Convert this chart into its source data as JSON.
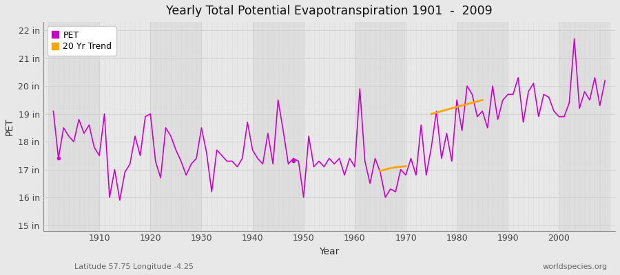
{
  "title": "Yearly Total Potential Evapotranspiration 1901  -  2009",
  "xlabel": "Year",
  "ylabel": "PET",
  "subtitle_left": "Latitude 57.75 Longitude -4.25",
  "subtitle_right": "worldspecies.org",
  "years": [
    1901,
    1902,
    1903,
    1904,
    1905,
    1906,
    1907,
    1908,
    1909,
    1910,
    1911,
    1912,
    1913,
    1914,
    1915,
    1916,
    1917,
    1918,
    1919,
    1920,
    1921,
    1922,
    1923,
    1924,
    1925,
    1926,
    1927,
    1928,
    1929,
    1930,
    1931,
    1932,
    1933,
    1934,
    1935,
    1936,
    1937,
    1938,
    1939,
    1940,
    1941,
    1942,
    1943,
    1944,
    1945,
    1946,
    1947,
    1948,
    1949,
    1950,
    1951,
    1952,
    1953,
    1954,
    1955,
    1956,
    1957,
    1958,
    1959,
    1960,
    1961,
    1962,
    1963,
    1964,
    1965,
    1966,
    1967,
    1968,
    1969,
    1970,
    1971,
    1972,
    1973,
    1974,
    1975,
    1976,
    1977,
    1978,
    1979,
    1980,
    1981,
    1982,
    1983,
    1984,
    1985,
    1986,
    1987,
    1988,
    1989,
    1990,
    1991,
    1992,
    1993,
    1994,
    1995,
    1996,
    1997,
    1998,
    1999,
    2000,
    2001,
    2002,
    2003,
    2004,
    2005,
    2006,
    2007,
    2008,
    2009
  ],
  "pet": [
    19.1,
    17.4,
    18.5,
    18.2,
    18.0,
    18.8,
    18.3,
    18.6,
    17.8,
    17.5,
    19.0,
    16.0,
    17.0,
    15.9,
    16.9,
    17.2,
    18.2,
    17.5,
    18.9,
    19.0,
    17.3,
    16.7,
    18.5,
    18.2,
    17.7,
    17.3,
    16.8,
    17.2,
    17.4,
    18.5,
    17.6,
    16.2,
    17.7,
    17.5,
    17.3,
    17.3,
    17.1,
    17.4,
    18.7,
    17.7,
    17.4,
    17.2,
    18.3,
    17.2,
    19.5,
    18.4,
    17.2,
    17.4,
    17.3,
    16.0,
    18.2,
    17.1,
    17.3,
    17.1,
    17.4,
    17.2,
    17.4,
    16.8,
    17.4,
    17.1,
    19.9,
    17.3,
    16.5,
    17.4,
    16.9,
    16.0,
    16.3,
    16.2,
    17.0,
    16.8,
    17.4,
    16.8,
    18.6,
    16.8,
    17.8,
    19.1,
    17.4,
    18.3,
    17.3,
    19.5,
    18.4,
    20.0,
    19.7,
    18.9,
    19.1,
    18.5,
    20.0,
    18.8,
    19.5,
    19.7,
    19.7,
    20.3,
    18.7,
    19.8,
    20.1,
    18.9,
    19.7,
    19.6,
    19.1,
    18.9,
    18.9,
    19.4,
    21.7,
    19.2,
    19.8,
    19.5,
    20.3,
    19.3,
    20.2
  ],
  "trend_years_seg1": [
    1965,
    1966,
    1967,
    1968,
    1969,
    1970
  ],
  "trend_values_seg1": [
    16.95,
    17.0,
    17.05,
    17.08,
    17.1,
    17.12
  ],
  "trend_years_seg2": [
    1975,
    1976,
    1977,
    1978,
    1979,
    1980,
    1981,
    1982,
    1983,
    1984,
    1985
  ],
  "trend_values_seg2": [
    19.0,
    19.05,
    19.1,
    19.15,
    19.2,
    19.25,
    19.3,
    19.35,
    19.4,
    19.45,
    19.5
  ],
  "pet_color": "#CC00CC",
  "trend_color": "#FFA500",
  "bg_color": "#E8E8E8",
  "band_colors": [
    "#DEDEDE",
    "#E8E8E8"
  ],
  "ylim": [
    14.8,
    22.3
  ],
  "yticks": [
    15,
    16,
    17,
    18,
    19,
    20,
    21,
    22
  ],
  "ytick_labels": [
    "15 in",
    "16 in",
    "17 in",
    "18 in",
    "19 in",
    "20 in",
    "21 in",
    "22 in"
  ],
  "xtick_positions": [
    1910,
    1920,
    1930,
    1940,
    1950,
    1960,
    1970,
    1980,
    1990,
    2000
  ],
  "xlim": [
    1899,
    2011
  ],
  "grid_color": "#CCCCCC",
  "legend_labels": [
    "PET",
    "20 Yr Trend"
  ]
}
